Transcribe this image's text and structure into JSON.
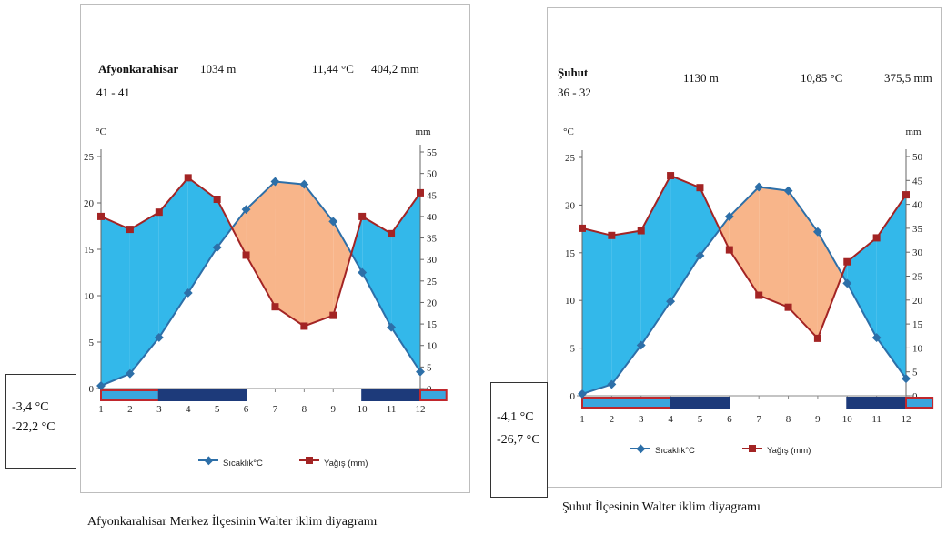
{
  "colors": {
    "humid": "#33b8ea",
    "arid": "#f8b58a",
    "temp": "#2d6fa8",
    "precip": "#a32424",
    "frost_dark": "#1d3a7a",
    "frost_light": "#3aa6df",
    "frost_border": "#c0272d"
  },
  "chart_data": [
    {
      "type": "line",
      "station": "Afyonkarahisar",
      "station_code": "41 - 41",
      "elevation": "1034 m",
      "mean_temp": "11,44 °C",
      "annual_precip": "404,2 mm",
      "ylabel_left": "°C",
      "ylabel_right": "mm",
      "ylim_left": [
        0,
        25
      ],
      "ylim_right": [
        0,
        55
      ],
      "yticks_left": [
        "0",
        "5",
        "10",
        "15",
        "20",
        "25"
      ],
      "yticks_right": [
        "0",
        "5",
        "10",
        "15",
        "20",
        "25",
        "30",
        "35",
        "40",
        "45",
        "50",
        "55"
      ],
      "categories": [
        "1",
        "2",
        "3",
        "4",
        "5",
        "6",
        "7",
        "8",
        "9",
        "10",
        "11",
        "12"
      ],
      "series": [
        {
          "name": "Sıcaklık°C",
          "values": [
            0.3,
            1.6,
            5.5,
            10.3,
            15.2,
            19.3,
            22.3,
            22.0,
            18.0,
            12.5,
            6.6,
            1.8
          ]
        },
        {
          "name": "Yağış (mm)",
          "values": [
            40,
            37,
            41,
            49,
            44,
            31,
            19,
            14.5,
            17,
            40,
            36,
            45.5
          ]
        }
      ],
      "frost_bars": {
        "months_red_outline": [
          1,
          2
        ],
        "months_dark": [
          3,
          4,
          5
        ],
        "months_dark_end": [
          10,
          11
        ],
        "months_red_end": [
          12
        ]
      },
      "min_mean_temp": "-3,4 °C",
      "abs_min_temp": "-22,2 °C",
      "legend": [
        "Sıcaklık°C",
        "Yağış (mm)"
      ],
      "caption": "Afyonkarahisar Merkez İlçesinin Walter iklim diyagramı"
    },
    {
      "type": "line",
      "station": "Şuhut",
      "station_code": "36 - 32",
      "elevation": "1130 m",
      "mean_temp": "10,85 °C",
      "annual_precip": "375,5 mm",
      "ylabel_left": "°C",
      "ylabel_right": "mm",
      "ylim_left": [
        0,
        25
      ],
      "ylim_right": [
        0,
        50
      ],
      "yticks_left": [
        "0",
        "5",
        "10",
        "15",
        "20",
        "25"
      ],
      "yticks_right": [
        "0",
        "5",
        "10",
        "15",
        "20",
        "25",
        "30",
        "35",
        "40",
        "45",
        "50"
      ],
      "categories": [
        "1",
        "2",
        "3",
        "4",
        "5",
        "6",
        "7",
        "8",
        "9",
        "10",
        "11",
        "12"
      ],
      "series": [
        {
          "name": "Sıcaklık°C",
          "values": [
            0.2,
            1.2,
            5.3,
            9.9,
            14.7,
            18.8,
            21.9,
            21.5,
            17.2,
            11.8,
            6.1,
            1.8
          ]
        },
        {
          "name": "Yağış (mm)",
          "values": [
            35,
            33.5,
            34.5,
            46,
            43.5,
            30.5,
            21,
            18.5,
            12,
            28,
            33,
            42
          ]
        }
      ],
      "frost_bars": {
        "months_red_outline": [
          1,
          2,
          3
        ],
        "months_dark": [
          4,
          5
        ],
        "months_dark_end": [
          10,
          11
        ],
        "months_red_end": [
          12
        ]
      },
      "min_mean_temp": "-4,1 °C",
      "abs_min_temp": "-26,7 °C",
      "legend": [
        "Sıcaklık°C",
        "Yağış (mm)"
      ],
      "caption": "Şuhut İlçesinin Walter iklim diyagramı"
    }
  ]
}
